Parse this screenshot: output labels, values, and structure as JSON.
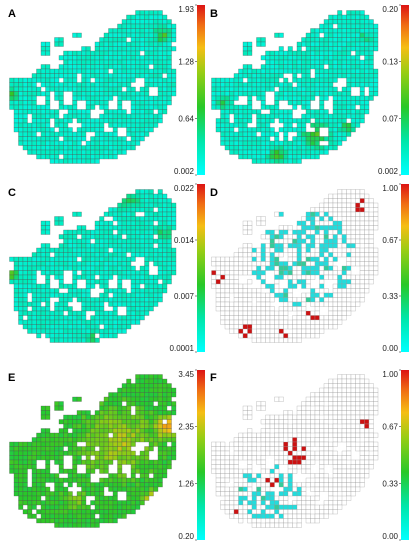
{
  "chart_data": [
    {
      "panel": "A",
      "type": "heatmap",
      "colorbar": {
        "ticks": [
          "1.93",
          "1.28",
          "0.64",
          "0.002"
        ],
        "min": 0.002,
        "max": 1.93
      },
      "scheme": "continuous",
      "base_level": 0.12,
      "hotspots": [
        {
          "rel": [
            0.9,
            0.18
          ],
          "radius": 0.06,
          "level": 0.45
        },
        {
          "rel": [
            0.04,
            0.55
          ],
          "radius": 0.04,
          "level": 0.55
        },
        {
          "rel": [
            0.55,
            0.1
          ],
          "radius": 0.05,
          "level": 0.3
        }
      ]
    },
    {
      "panel": "B",
      "type": "heatmap",
      "colorbar": {
        "ticks": [
          "0.20",
          "0.13",
          "0.07",
          "0.002"
        ],
        "min": 0.002,
        "max": 0.2
      },
      "scheme": "continuous",
      "base_level": 0.12,
      "hotspots": [
        {
          "rel": [
            0.62,
            0.8
          ],
          "radius": 0.1,
          "level": 0.45
        },
        {
          "rel": [
            0.4,
            0.92
          ],
          "radius": 0.06,
          "level": 0.5
        },
        {
          "rel": [
            0.1,
            0.6
          ],
          "radius": 0.05,
          "level": 0.35
        },
        {
          "rel": [
            0.8,
            0.75
          ],
          "radius": 0.05,
          "level": 0.45
        },
        {
          "rel": [
            0.9,
            0.2
          ],
          "radius": 0.05,
          "level": 0.3
        }
      ]
    },
    {
      "panel": "C",
      "type": "heatmap",
      "colorbar": {
        "ticks": [
          "0.022",
          "0.014",
          "0.007",
          "0.0001"
        ],
        "min": 0.0001,
        "max": 0.022
      },
      "scheme": "continuous",
      "base_level": 0.13,
      "hotspots": [
        {
          "rel": [
            0.03,
            0.55
          ],
          "radius": 0.05,
          "level": 0.65
        },
        {
          "rel": [
            0.7,
            0.1
          ],
          "radius": 0.08,
          "level": 0.35
        },
        {
          "rel": [
            0.9,
            0.3
          ],
          "radius": 0.06,
          "level": 0.3
        },
        {
          "rel": [
            0.5,
            0.95
          ],
          "radius": 0.05,
          "level": 0.35
        }
      ]
    },
    {
      "panel": "D",
      "type": "heatmap",
      "colorbar": {
        "ticks": [
          "1.00",
          "0.67",
          "0.33",
          "0.00"
        ],
        "min": 0,
        "max": 1.0
      },
      "scheme": "binary",
      "colored_region": {
        "rel": [
          0.55,
          0.45
        ],
        "radius": 0.3
      },
      "red_clusters": [
        {
          "rel": [
            0.05,
            0.55
          ],
          "radius": 0.05
        },
        {
          "rel": [
            0.22,
            0.9
          ],
          "radius": 0.04
        },
        {
          "rel": [
            0.6,
            0.78
          ],
          "radius": 0.05
        },
        {
          "rel": [
            0.45,
            0.92
          ],
          "radius": 0.04
        },
        {
          "rel": [
            0.88,
            0.12
          ],
          "radius": 0.04
        }
      ]
    },
    {
      "panel": "E",
      "type": "heatmap",
      "colorbar": {
        "ticks": [
          "3.45",
          "2.35",
          "1.26",
          "0.20"
        ],
        "min": 0.2,
        "max": 3.45
      },
      "scheme": "continuous",
      "base_level": 0.4,
      "hotspots": [
        {
          "rel": [
            0.65,
            0.45
          ],
          "radius": 0.28,
          "level": 0.65
        },
        {
          "rel": [
            0.92,
            0.35
          ],
          "radius": 0.1,
          "level": 0.85
        },
        {
          "rel": [
            0.85,
            0.8
          ],
          "radius": 0.08,
          "level": 0.8
        },
        {
          "rel": [
            0.05,
            0.45
          ],
          "radius": 0.06,
          "level": 0.25
        },
        {
          "rel": [
            0.4,
            0.8
          ],
          "radius": 0.1,
          "level": 0.55
        }
      ]
    },
    {
      "panel": "F",
      "type": "heatmap",
      "colorbar": {
        "ticks": [
          "1.00",
          "0.67",
          "0.33",
          "0.00"
        ],
        "min": 0,
        "max": 1.0
      },
      "scheme": "binary",
      "colored_region": {
        "rel": [
          0.35,
          0.75
        ],
        "radius": 0.18
      },
      "red_clusters": [
        {
          "rel": [
            0.3,
            0.2
          ],
          "radius": 0.1
        },
        {
          "rel": [
            0.5,
            0.5
          ],
          "radius": 0.08
        },
        {
          "rel": [
            0.35,
            0.7
          ],
          "radius": 0.06
        },
        {
          "rel": [
            0.92,
            0.35
          ],
          "radius": 0.05
        },
        {
          "rel": [
            0.15,
            0.9
          ],
          "radius": 0.04
        }
      ]
    }
  ]
}
